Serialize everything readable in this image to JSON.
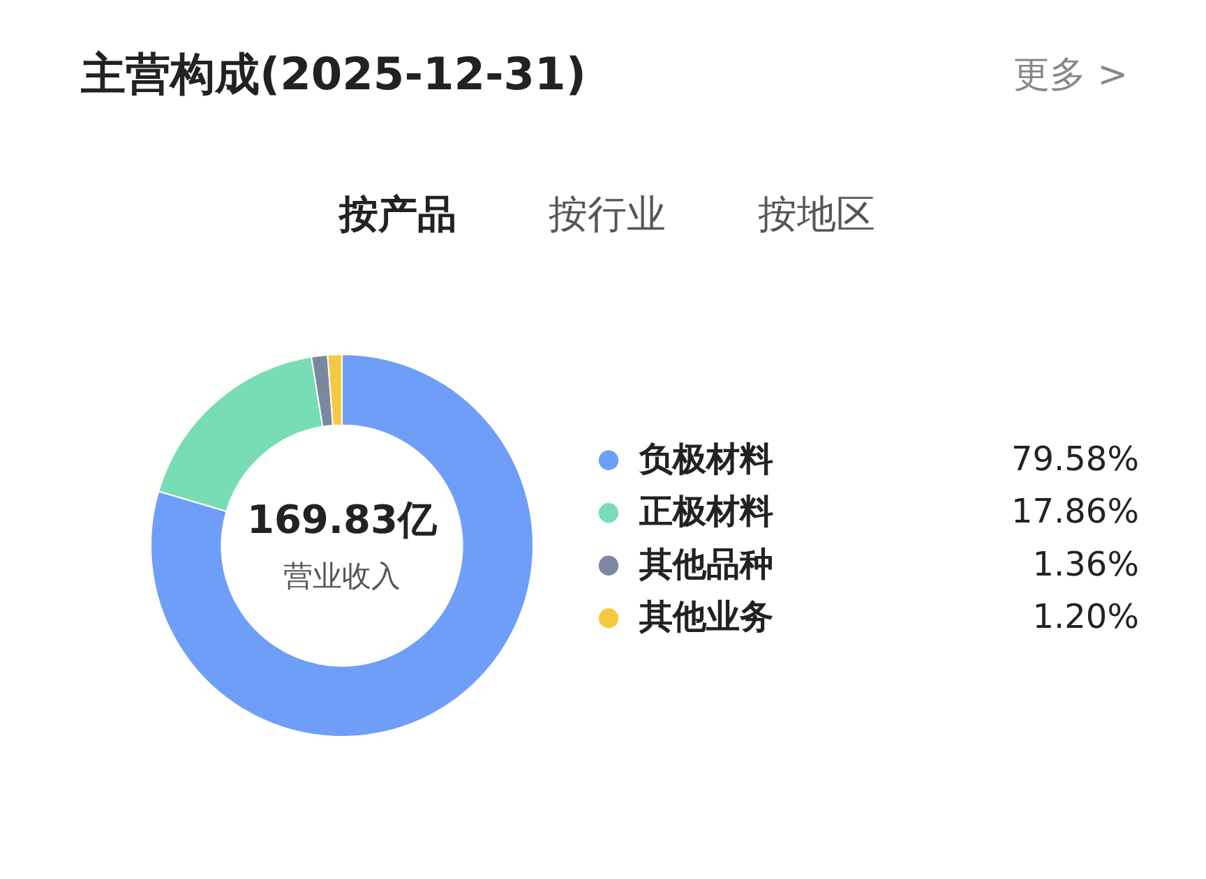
{
  "chart_data": {
    "type": "donut",
    "title": "主营构成(2025-12-31)",
    "categories": [
      "负极材料",
      "正极材料",
      "其他品种",
      "其他业务"
    ],
    "values": [
      79.58,
      17.86,
      1.36,
      1.2
    ],
    "colors": [
      "#6f9ef8",
      "#78dcb4",
      "#7a879f",
      "#f5c842"
    ],
    "value_labels": [
      "79.58%",
      "17.86%",
      "1.36%",
      "1.20%"
    ],
    "legend": "right",
    "annotations": [
      "169.83亿",
      "营业收入",
      "按产品",
      "按行业",
      "按地区",
      "更多 >"
    ]
  }
}
